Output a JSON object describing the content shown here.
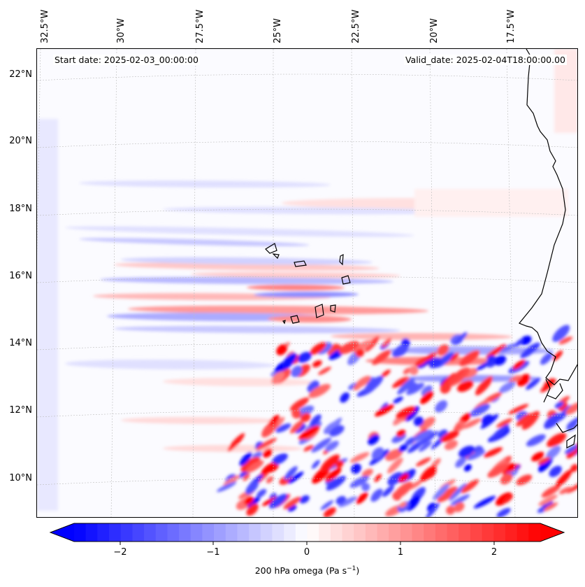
{
  "header": {
    "start_date": "Start date: 2025-02-03_00:00:00",
    "valid_date": "Valid_date: 2025-02-04T18:00:00.00"
  },
  "map": {
    "lon_labels": [
      "32.5°W",
      "30°W",
      "27.5°W",
      "25°W",
      "22.5°W",
      "20°W",
      "17.5°W"
    ],
    "lat_labels": [
      "22°N",
      "20°N",
      "18°N",
      "16°N",
      "14°N",
      "12°N",
      "10°N"
    ],
    "field": "200 hPa omega",
    "colormap": "bwr",
    "colors": {
      "positive": "#ff0000",
      "negative": "#0000ff",
      "neutral": "#ffffff",
      "coastline": "#000000"
    }
  },
  "colorbar": {
    "tick_labels": [
      "−2",
      "−1",
      "0",
      "1",
      "2"
    ],
    "title_main": "200 hPa omega (Pa s",
    "title_exp": "−1",
    "title_end": ")"
  }
}
